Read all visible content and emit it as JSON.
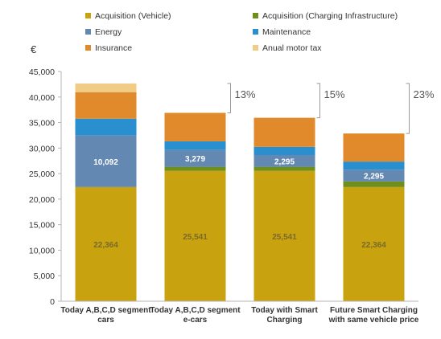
{
  "chart_data": {
    "type": "bar",
    "stacked": true,
    "unit": "€",
    "categories": [
      [
        "Today A,B,C,D segment",
        "cars"
      ],
      [
        "Today A,B,C,D segment",
        "e-cars"
      ],
      [
        "Today with Smart",
        "Charging"
      ],
      [
        "Future Smart Charging",
        "with same vehicle price"
      ]
    ],
    "series": [
      {
        "name": "Acquisition (Vehicle)",
        "color": "#c8a20f",
        "values": [
          22364,
          25541,
          25541,
          22364
        ]
      },
      {
        "name": "Acquisition (Charging Infrastructure)",
        "color": "#6e8f1c",
        "values": [
          0,
          800,
          800,
          1100
        ]
      },
      {
        "name": "Energy",
        "color": "#6389b3",
        "values": [
          10092,
          3279,
          2295,
          2295
        ]
      },
      {
        "name": "Maintenance",
        "color": "#2a8fce",
        "values": [
          3300,
          1700,
          1600,
          1600
        ]
      },
      {
        "name": "Insurance",
        "color": "#e08a2b",
        "values": [
          5200,
          5580,
          5700,
          5500
        ]
      },
      {
        "name": "Anual motor tax",
        "color": "#f0cc86",
        "values": [
          1700,
          0,
          0,
          0
        ]
      }
    ],
    "data_labels": [
      {
        "series": 0,
        "labels": [
          "22,364",
          "25,541",
          "25,541",
          "22,364"
        ]
      },
      {
        "series": 2,
        "labels": [
          "10,092",
          "3,279",
          "2,295",
          "2,295"
        ]
      }
    ],
    "annotations": [
      "13%",
      "15%",
      "23%"
    ],
    "ylim": [
      0,
      45000
    ],
    "yticks": [
      0,
      5000,
      10000,
      15000,
      20000,
      25000,
      30000,
      35000,
      40000,
      45000
    ],
    "ytick_labels": [
      "0",
      "5,000",
      "10,000",
      "15,000",
      "20,000",
      "25,000",
      "30,000",
      "35,000",
      "40,000",
      "45,000"
    ],
    "legend_position": "top",
    "grid": false
  }
}
